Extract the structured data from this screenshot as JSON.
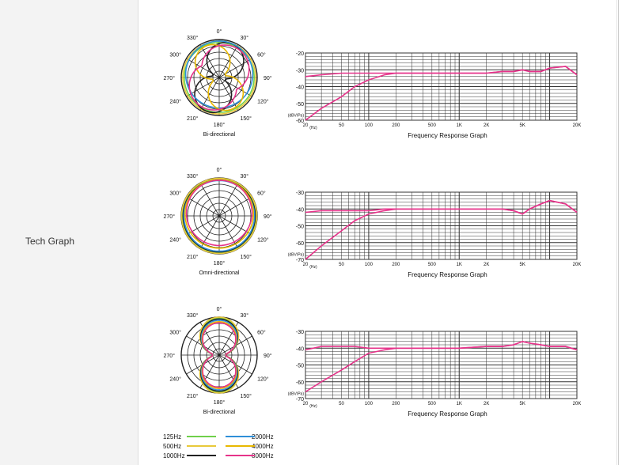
{
  "label": "Tech Graph",
  "polar_angle_labels": [
    "0°",
    "30°",
    "60°",
    "90°",
    "120°",
    "150°",
    "180°",
    "210°",
    "240°",
    "270°",
    "300°",
    "330°"
  ],
  "freq_x_ticks": [
    "20",
    "50",
    "100",
    "200",
    "500",
    "1K",
    "2K",
    "5K",
    "20K"
  ],
  "unit_hz": "(Hz)",
  "unit_dbv": "(dBV/Pa)",
  "freq_title": "Frequency Response Graph",
  "legend": [
    {
      "label": "125Hz",
      "color": "#6fd04a"
    },
    {
      "label": "2000Hz",
      "color": "#2f8fd8"
    },
    {
      "label": "500Hz",
      "color": "#e8c93a"
    },
    {
      "label": "4000Hz",
      "color": "#e8b800"
    },
    {
      "label": "1000Hz",
      "color": "#222222"
    },
    {
      "label": "8000Hz",
      "color": "#e6338a"
    }
  ],
  "graphs": [
    {
      "polar_caption": "Bi-directional",
      "y_ticks": [
        "-20",
        "-30",
        "-40",
        "-50",
        "-60"
      ],
      "chart_data": {
        "type": "line",
        "xlabel": "Frequency Response Graph",
        "x": [
          20,
          30,
          50,
          70,
          100,
          150,
          200,
          500,
          1000,
          2000,
          3000,
          4000,
          5000,
          6000,
          8000,
          10000,
          15000,
          20000
        ],
        "series": [
          {
            "values": [
              -34,
              -33,
              -32,
              -32,
              -32,
              -32,
              -32,
              -32,
              -32,
              -32,
              -31,
              -31,
              -30,
              -31,
              -31,
              -29,
              -28,
              -33
            ]
          },
          {
            "values": [
              -60,
              -53,
              -46,
              -40,
              -36,
              -33,
              -32,
              -32,
              -32,
              -32,
              -31,
              -31,
              -30,
              -31,
              -31,
              -29,
              -28,
              -33
            ]
          }
        ],
        "ylim": [
          -60,
          -20
        ]
      }
    },
    {
      "polar_caption": "Omni-directional",
      "y_ticks": [
        "-30",
        "-40",
        "-50",
        "-60",
        "-70"
      ],
      "chart_data": {
        "type": "line",
        "xlabel": "Frequency Response Graph",
        "x": [
          20,
          30,
          50,
          70,
          100,
          150,
          200,
          500,
          1000,
          2000,
          3000,
          4000,
          5000,
          6000,
          8000,
          10000,
          15000,
          20000
        ],
        "series": [
          {
            "values": [
              -42,
              -41,
              -41,
              -41,
              -41,
              -40,
              -40,
              -40,
              -40,
              -40,
              -40,
              -41,
              -43,
              -40,
              -37,
              -35,
              -37,
              -42
            ]
          },
          {
            "values": [
              -70,
              -62,
              -53,
              -47,
              -43,
              -41,
              -40,
              -40,
              -40,
              -40,
              -40,
              -41,
              -43,
              -40,
              -37,
              -35,
              -37,
              -42
            ]
          }
        ],
        "ylim": [
          -70,
          -30
        ]
      }
    },
    {
      "polar_caption": "Bi-directional",
      "y_ticks": [
        "-30",
        "-40",
        "-50",
        "-60",
        "-70"
      ],
      "chart_data": {
        "type": "line",
        "xlabel": "Frequency Response Graph",
        "x": [
          20,
          30,
          50,
          70,
          100,
          150,
          200,
          500,
          1000,
          2000,
          3000,
          4000,
          5000,
          6000,
          8000,
          10000,
          15000,
          20000
        ],
        "series": [
          {
            "values": [
              -41,
              -39,
              -39,
              -39,
              -40,
              -40,
              -40,
              -40,
              -40,
              -39,
              -39,
              -38,
              -36,
              -37,
              -38,
              -39,
              -39,
              -41
            ]
          },
          {
            "values": [
              -66,
              -60,
              -53,
              -48,
              -43,
              -41,
              -40,
              -40,
              -40,
              -39,
              -39,
              -38,
              -36,
              -37,
              -38,
              -39,
              -39,
              -41
            ]
          }
        ],
        "ylim": [
          -70,
          -30
        ]
      }
    }
  ]
}
